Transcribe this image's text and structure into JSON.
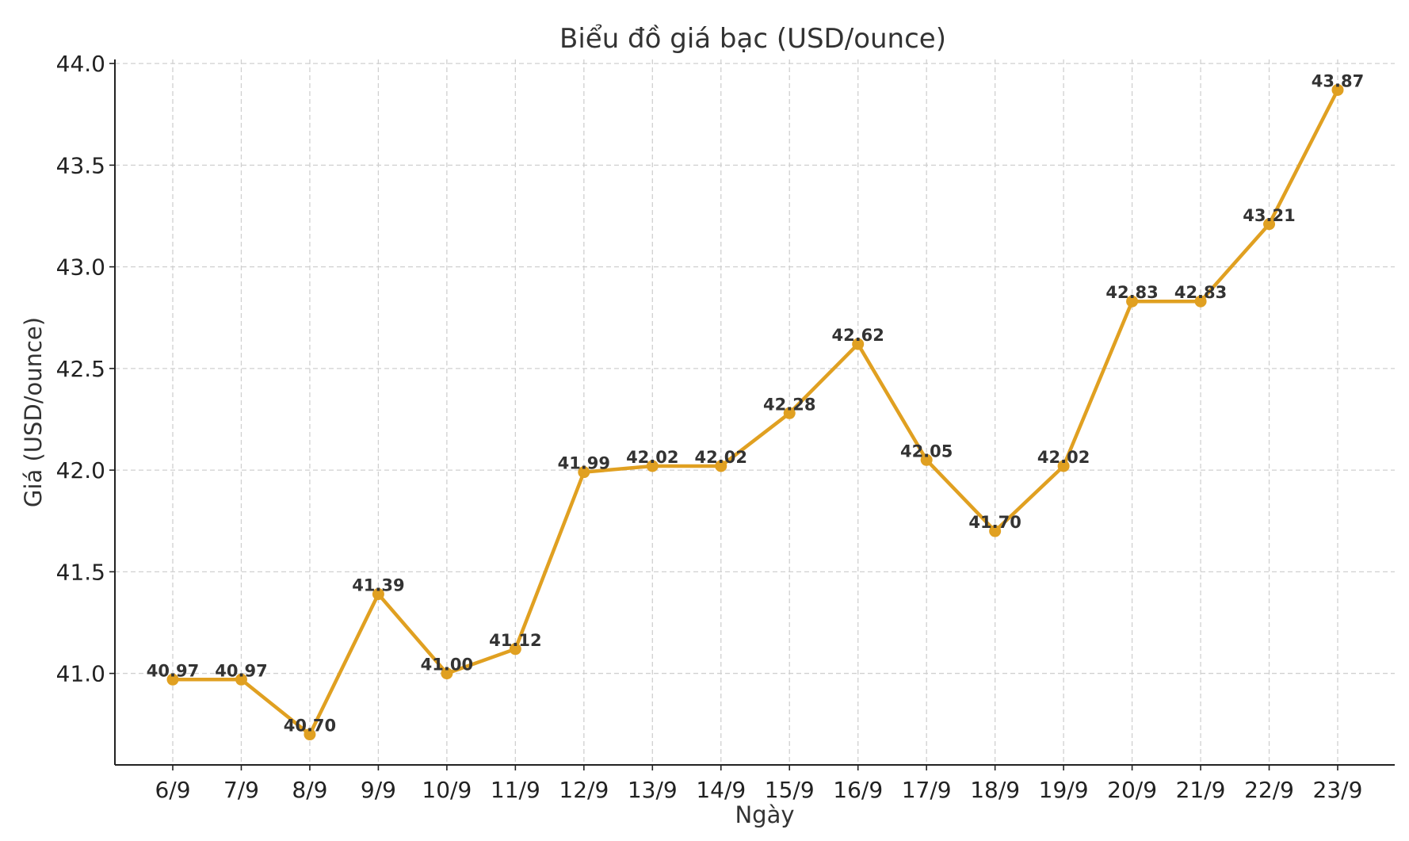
{
  "chart_data": {
    "type": "line",
    "title": "Biểu đồ giá bạc (USD/ounce)",
    "xlabel": "Ngày",
    "ylabel": "Giá (USD/ounce)",
    "categories": [
      "6/9",
      "7/9",
      "8/9",
      "9/9",
      "10/9",
      "11/9",
      "12/9",
      "13/9",
      "14/9",
      "15/9",
      "16/9",
      "17/9",
      "18/9",
      "19/9",
      "20/9",
      "21/9",
      "22/9",
      "23/9"
    ],
    "series": [
      {
        "values": [
          40.97,
          40.97,
          40.7,
          41.39,
          41.0,
          41.12,
          41.99,
          42.02,
          42.02,
          42.28,
          42.62,
          42.05,
          41.7,
          42.02,
          42.83,
          42.83,
          43.21,
          43.87
        ],
        "labels": [
          "40.97",
          "40.97",
          "40.70",
          "41.39",
          "41.00",
          "41.12",
          "41.99",
          "42.02",
          "42.02",
          "42.28",
          "42.62",
          "42.05",
          "41.70",
          "42.02",
          "42.83",
          "42.83",
          "43.21",
          "43.87"
        ],
        "color": "#E0A021"
      }
    ],
    "ylim": [
      40.55,
      44.02
    ],
    "yticks": [
      41.0,
      41.5,
      42.0,
      42.5,
      43.0,
      43.5,
      44.0
    ],
    "ytick_labels": [
      "41.0",
      "41.5",
      "42.0",
      "42.5",
      "43.0",
      "43.5",
      "44.0"
    ],
    "grid": true,
    "marker": "circle",
    "data_labels": true
  }
}
